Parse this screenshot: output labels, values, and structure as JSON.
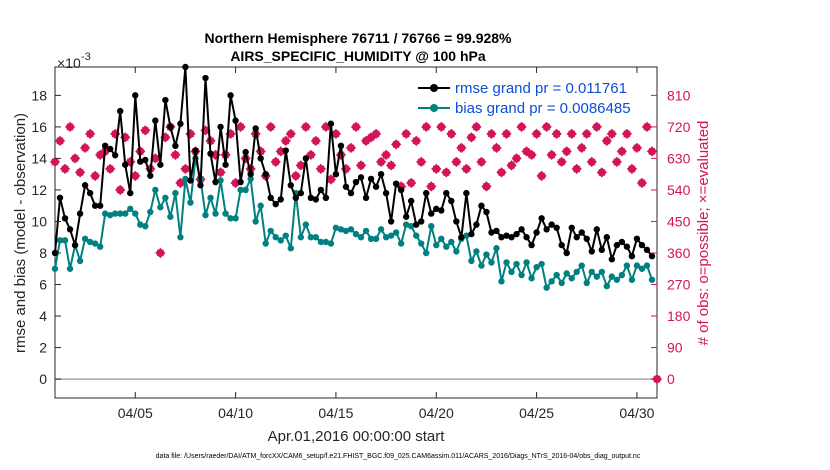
{
  "colors": {
    "rmse": "#000000",
    "bias": "#008080",
    "obs": "#d4145a",
    "zero_line": "#a6a6a6",
    "legend_text": "#0a4fd6",
    "axis": "#262626"
  },
  "chart_data": {
    "type": "line",
    "title": "Northern Hemisphere 76711 / 76766 = 99.928%",
    "subtitle": "AIRS_SPECIFIC_HUMIDITY @ 100 hPa",
    "exponent_label": "×10",
    "exponent_power": "-3",
    "xlabel": "Apr.01,2016 00:00:00 start",
    "ylabel": "rmse and bias (model - observation)",
    "y2label": "# of obs: o=possible; ×=evaluated",
    "footer": "data file: /Users/raeder/DAI/ATM_forcXX/CAM6_setup/f.e21.FHIST_BGC.f09_025.CAM6assim.011/ACARS_2016/Diags_NTrS_2016-04/obs_diag_output.nc",
    "xlim": [
      1.0,
      31.0
    ],
    "ylim": [
      -1.2,
      19.8
    ],
    "y2lim": [
      -54,
      891
    ],
    "x_ticks": [
      5,
      10,
      15,
      20,
      25,
      30
    ],
    "x_tick_labels": [
      "04/05",
      "04/10",
      "04/15",
      "04/20",
      "04/25",
      "04/30"
    ],
    "y_ticks": [
      0,
      2,
      4,
      6,
      8,
      10,
      12,
      14,
      16,
      18
    ],
    "y_tick_labels": [
      "0",
      "2",
      "4",
      "6",
      "8",
      "10",
      "12",
      "14",
      "16",
      "18"
    ],
    "y2_ticks": [
      0,
      90,
      180,
      270,
      360,
      450,
      540,
      630,
      720,
      810
    ],
    "y2_tick_labels": [
      "0",
      "90",
      "180",
      "270",
      "360",
      "450",
      "540",
      "630",
      "720",
      "810"
    ],
    "legend_position": "top-right",
    "series": [
      {
        "name": "rmse grand pr = 0.011761",
        "axis": "left",
        "x": [
          1.0,
          1.25,
          1.5,
          1.75,
          2.0,
          2.25,
          2.5,
          2.75,
          3.0,
          3.25,
          3.5,
          3.75,
          4.0,
          4.25,
          4.5,
          4.75,
          5.0,
          5.25,
          5.5,
          5.75,
          6.0,
          6.25,
          6.5,
          6.75,
          7.0,
          7.25,
          7.5,
          7.75,
          8.0,
          8.25,
          8.5,
          8.75,
          9.0,
          9.25,
          9.5,
          9.75,
          10.0,
          10.25,
          10.5,
          10.75,
          11.0,
          11.25,
          11.5,
          11.75,
          12.0,
          12.25,
          12.5,
          12.75,
          13.0,
          13.25,
          13.5,
          13.75,
          14.0,
          14.25,
          14.5,
          14.75,
          15.0,
          15.25,
          15.5,
          15.75,
          16.0,
          16.25,
          16.5,
          16.75,
          17.0,
          17.25,
          17.5,
          17.75,
          18.0,
          18.25,
          18.5,
          18.75,
          19.0,
          19.25,
          19.5,
          19.75,
          20.0,
          20.25,
          20.5,
          20.75,
          21.0,
          21.25,
          21.5,
          21.75,
          22.0,
          22.25,
          22.5,
          22.75,
          23.0,
          23.25,
          23.5,
          23.75,
          24.0,
          24.25,
          24.5,
          24.75,
          25.0,
          25.25,
          25.5,
          25.75,
          26.0,
          26.25,
          26.5,
          26.75,
          27.0,
          27.25,
          27.5,
          27.75,
          28.0,
          28.25,
          28.5,
          28.75,
          29.0,
          29.25,
          29.5,
          29.75,
          30.0,
          30.25,
          30.5,
          30.75
        ],
        "values": [
          8.0,
          11.5,
          10.2,
          9.5,
          8.5,
          10.5,
          12.3,
          11.8,
          11.0,
          11.0,
          14.8,
          14.6,
          14.2,
          17.0,
          13.6,
          11.8,
          18.0,
          13.8,
          13.9,
          12.9,
          16.4,
          13.6,
          17.7,
          16.0,
          14.8,
          16.2,
          19.8,
          12.6,
          14.5,
          12.3,
          19.1,
          14.3,
          12.5,
          16.0,
          13.6,
          18.0,
          16.4,
          12.5,
          14.4,
          13.0,
          15.9,
          14.0,
          13.0,
          11.5,
          11.1,
          11.4,
          14.5,
          12.3,
          11.5,
          11.8,
          14.0,
          11.5,
          11.4,
          12.0,
          11.5,
          16.2,
          13.0,
          14.8,
          12.2,
          11.8,
          12.5,
          12.8,
          11.5,
          12.7,
          12.2,
          13.0,
          11.8,
          10.0,
          12.4,
          12.0,
          10.3,
          11.3,
          9.8,
          10.0,
          11.8,
          10.5,
          10.8,
          10.7,
          11.8,
          11.3,
          10.0,
          9.0,
          11.8,
          9.2,
          9.8,
          11.0,
          10.6,
          9.3,
          9.4,
          9.0,
          9.1,
          9.0,
          9.2,
          9.5,
          9.0,
          8.5,
          9.3,
          10.2,
          9.5,
          9.8,
          9.6,
          8.5,
          8.0,
          9.6,
          9.0,
          9.3,
          8.9,
          8.1,
          9.5,
          8.2,
          9.0,
          7.6,
          8.5,
          8.7,
          8.4,
          7.8,
          8.9,
          8.5,
          8.2,
          7.8
        ],
        "color": "#000000"
      },
      {
        "name": "bias grand pr = 0.0086485",
        "axis": "left",
        "x": [
          1.0,
          1.25,
          1.5,
          1.75,
          2.0,
          2.25,
          2.5,
          2.75,
          3.0,
          3.25,
          3.5,
          3.75,
          4.0,
          4.25,
          4.5,
          4.75,
          5.0,
          5.25,
          5.5,
          5.75,
          6.0,
          6.25,
          6.5,
          6.75,
          7.0,
          7.25,
          7.5,
          7.75,
          8.0,
          8.25,
          8.5,
          8.75,
          9.0,
          9.25,
          9.5,
          9.75,
          10.0,
          10.25,
          10.5,
          10.75,
          11.0,
          11.25,
          11.5,
          11.75,
          12.0,
          12.25,
          12.5,
          12.75,
          13.0,
          13.25,
          13.5,
          13.75,
          14.0,
          14.25,
          14.5,
          14.75,
          15.0,
          15.25,
          15.5,
          15.75,
          16.0,
          16.25,
          16.5,
          16.75,
          17.0,
          17.25,
          17.5,
          17.75,
          18.0,
          18.25,
          18.5,
          18.75,
          19.0,
          19.25,
          19.5,
          19.75,
          20.0,
          20.25,
          20.5,
          20.75,
          21.0,
          21.25,
          21.5,
          21.75,
          22.0,
          22.25,
          22.5,
          22.75,
          23.0,
          23.25,
          23.5,
          23.75,
          24.0,
          24.25,
          24.5,
          24.75,
          25.0,
          25.25,
          25.5,
          25.75,
          26.0,
          26.25,
          26.5,
          26.75,
          27.0,
          27.25,
          27.5,
          27.75,
          28.0,
          28.25,
          28.5,
          28.75,
          29.0,
          29.25,
          29.5,
          29.75,
          30.0,
          30.25,
          30.5,
          30.75
        ],
        "values": [
          7.0,
          8.8,
          8.8,
          7.0,
          8.5,
          7.5,
          8.9,
          8.7,
          8.6,
          8.4,
          10.5,
          10.4,
          10.5,
          10.5,
          10.5,
          10.8,
          10.5,
          9.8,
          9.7,
          10.6,
          12.0,
          10.9,
          11.5,
          10.3,
          11.8,
          9.0,
          12.7,
          11.2,
          14.0,
          12.7,
          10.4,
          11.5,
          10.5,
          12.6,
          10.5,
          10.2,
          10.2,
          12.0,
          12.0,
          12.7,
          10.0,
          11.0,
          8.6,
          9.4,
          9.0,
          8.8,
          9.1,
          8.3,
          11.8,
          9.0,
          9.8,
          9.0,
          9.0,
          8.7,
          8.7,
          8.6,
          9.6,
          9.5,
          9.4,
          9.5,
          9.2,
          9.0,
          9.4,
          8.9,
          8.9,
          9.5,
          9.0,
          9.1,
          9.3,
          8.6,
          9.8,
          9.7,
          9.1,
          8.6,
          8.0,
          9.7,
          8.5,
          8.9,
          8.4,
          8.7,
          8.1,
          8.9,
          9.1,
          7.5,
          8.1,
          7.2,
          7.9,
          7.4,
          8.3,
          6.2,
          7.4,
          6.8,
          7.3,
          6.6,
          7.4,
          6.4,
          7.1,
          7.3,
          5.8,
          6.2,
          6.6,
          6.1,
          6.7,
          6.4,
          6.8,
          7.2,
          6.1,
          6.8,
          6.5,
          6.8,
          5.9,
          6.5,
          6.3,
          6.6,
          7.2,
          6.3,
          7.2,
          7.0,
          7.2,
          6.3
        ],
        "color": "#008080"
      },
      {
        "name": "# of obs",
        "axis": "right",
        "x": [
          1.0,
          1.25,
          1.5,
          1.75,
          2.0,
          2.25,
          2.5,
          2.75,
          3.0,
          3.25,
          3.5,
          3.75,
          4.0,
          4.25,
          4.5,
          4.75,
          5.0,
          5.25,
          5.5,
          5.75,
          6.0,
          6.25,
          6.5,
          6.75,
          7.0,
          7.25,
          7.5,
          7.75,
          8.0,
          8.25,
          8.5,
          8.75,
          9.0,
          9.25,
          9.5,
          9.75,
          10.0,
          10.25,
          10.5,
          10.75,
          11.0,
          11.25,
          11.5,
          11.75,
          12.0,
          12.25,
          12.5,
          12.75,
          13.0,
          13.25,
          13.5,
          13.75,
          14.0,
          14.25,
          14.5,
          14.75,
          15.0,
          15.25,
          15.5,
          15.75,
          16.0,
          16.25,
          16.5,
          16.75,
          17.0,
          17.25,
          17.5,
          17.75,
          18.0,
          18.25,
          18.5,
          18.75,
          19.0,
          19.25,
          19.5,
          19.75,
          20.0,
          20.25,
          20.5,
          20.75,
          21.0,
          21.25,
          21.5,
          21.75,
          22.0,
          22.25,
          22.5,
          22.75,
          23.0,
          23.25,
          23.5,
          23.75,
          24.0,
          24.25,
          24.5,
          24.75,
          25.0,
          25.25,
          25.5,
          25.75,
          26.0,
          26.25,
          26.5,
          26.75,
          27.0,
          27.25,
          27.5,
          27.75,
          28.0,
          28.25,
          28.5,
          28.75,
          29.0,
          29.25,
          29.5,
          29.75,
          30.0,
          30.25,
          30.5,
          30.75,
          31.0
        ],
        "values": [
          620,
          680,
          600,
          720,
          630,
          590,
          660,
          700,
          580,
          640,
          650,
          600,
          700,
          540,
          690,
          620,
          580,
          650,
          710,
          600,
          630,
          360,
          690,
          720,
          640,
          560,
          600,
          700,
          650,
          570,
          710,
          680,
          640,
          590,
          640,
          700,
          560,
          720,
          630,
          600,
          700,
          650,
          580,
          720,
          620,
          650,
          680,
          700,
          580,
          610,
          720,
          640,
          680,
          600,
          720,
          570,
          700,
          640,
          600,
          660,
          720,
          610,
          680,
          690,
          700,
          620,
          640,
          610,
          670,
          550,
          700,
          560,
          680,
          620,
          720,
          550,
          600,
          720,
          590,
          700,
          620,
          660,
          600,
          690,
          720,
          620,
          550,
          700,
          660,
          590,
          700,
          610,
          630,
          720,
          650,
          640,
          700,
          580,
          720,
          640,
          700,
          620,
          650,
          700,
          600,
          660,
          700,
          620,
          720,
          590,
          680,
          700,
          620,
          650,
          700,
          600,
          660,
          560,
          720,
          650,
          0
        ],
        "color": "#d4145a"
      }
    ]
  }
}
